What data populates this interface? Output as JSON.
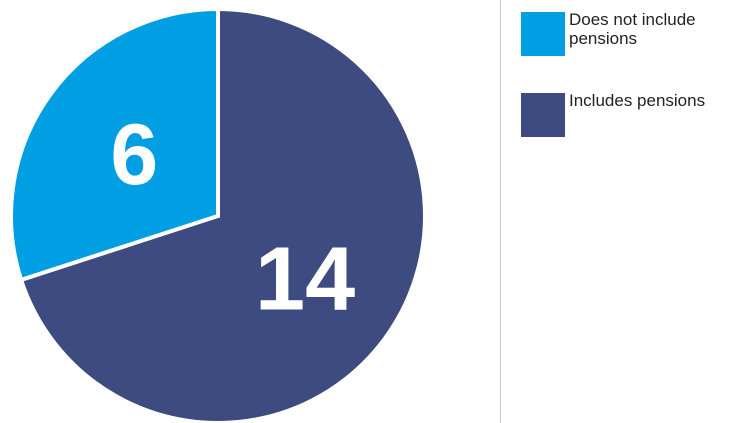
{
  "chart_data": {
    "type": "pie",
    "title": "",
    "slices": [
      {
        "label": "Does not include pensions",
        "value": 6,
        "color": "#009fe3"
      },
      {
        "label": "Includes pensions",
        "value": 14,
        "color": "#3d4b80"
      }
    ],
    "start_angle_deg": 0,
    "direction": "counterclockwise",
    "legend_position": "right",
    "slice_border_color": "#ffffff"
  }
}
